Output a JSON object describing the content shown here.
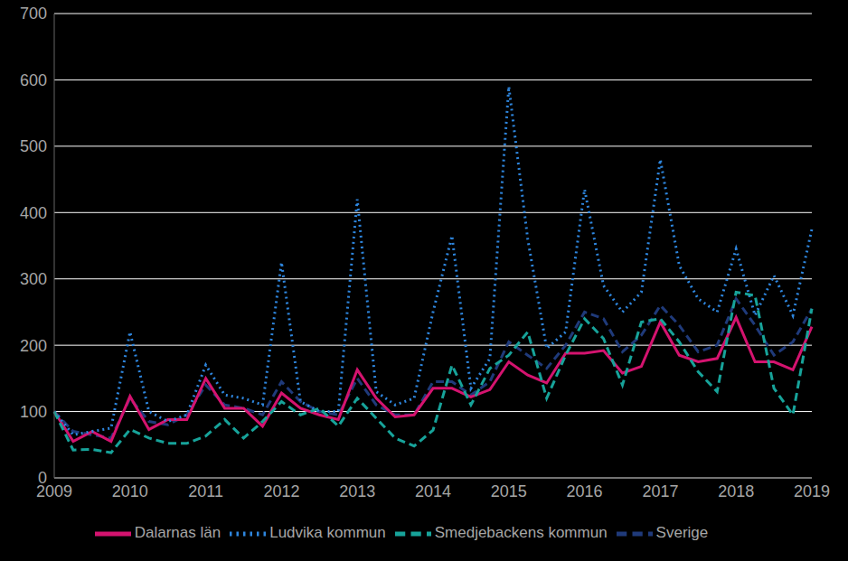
{
  "chart_data": {
    "type": "line",
    "categories": [
      "2009",
      null,
      null,
      null,
      "2010",
      null,
      null,
      null,
      "2011",
      null,
      null,
      null,
      "2012",
      null,
      null,
      null,
      "2013",
      null,
      null,
      null,
      "2014",
      null,
      null,
      null,
      "2015",
      null,
      null,
      null,
      "2016",
      null,
      null,
      null,
      "2017",
      null,
      null,
      null,
      "2018",
      null,
      null,
      null,
      "2019"
    ],
    "series": [
      {
        "name": "Sverige",
        "color": "#1f3a7a",
        "line_style": "dashed",
        "values": [
          100,
          70,
          65,
          60,
          120,
          85,
          80,
          95,
          140,
          110,
          105,
          95,
          145,
          115,
          100,
          95,
          150,
          110,
          95,
          95,
          145,
          145,
          125,
          145,
          205,
          185,
          165,
          200,
          250,
          240,
          190,
          215,
          260,
          230,
          190,
          200,
          270,
          230,
          185,
          205,
          255
        ]
      },
      {
        "name": "Dalarnas län",
        "color": "#d4136f",
        "line_style": "solid",
        "values": [
          100,
          55,
          70,
          55,
          123,
          73,
          88,
          88,
          150,
          105,
          105,
          78,
          128,
          105,
          95,
          88,
          163,
          120,
          92,
          95,
          135,
          135,
          122,
          133,
          175,
          155,
          143,
          188,
          188,
          192,
          158,
          168,
          235,
          185,
          175,
          180,
          242,
          175,
          175,
          163,
          228
        ]
      },
      {
        "name": "Ludvika kommun",
        "color": "#2e86de",
        "line_style": "dotted",
        "values": [
          100,
          65,
          70,
          75,
          220,
          100,
          85,
          95,
          170,
          125,
          120,
          110,
          325,
          115,
          100,
          100,
          420,
          130,
          110,
          120,
          250,
          365,
          135,
          180,
          590,
          360,
          195,
          220,
          435,
          290,
          250,
          280,
          480,
          320,
          270,
          250,
          345,
          245,
          305,
          245,
          375
        ]
      },
      {
        "name": "Smedjebackens kommun",
        "color": "#17a39a",
        "line_style": "dashed",
        "values": [
          100,
          42,
          43,
          38,
          73,
          60,
          52,
          52,
          63,
          88,
          60,
          85,
          115,
          95,
          105,
          78,
          120,
          90,
          60,
          48,
          72,
          170,
          110,
          165,
          185,
          220,
          120,
          185,
          240,
          210,
          140,
          235,
          240,
          205,
          160,
          130,
          280,
          275,
          135,
          95,
          255
        ]
      }
    ],
    "ylim": [
      0,
      700
    ],
    "yticks": [
      0,
      100,
      200,
      300,
      400,
      500,
      600,
      700
    ],
    "grid": true,
    "legend": "bottom"
  }
}
